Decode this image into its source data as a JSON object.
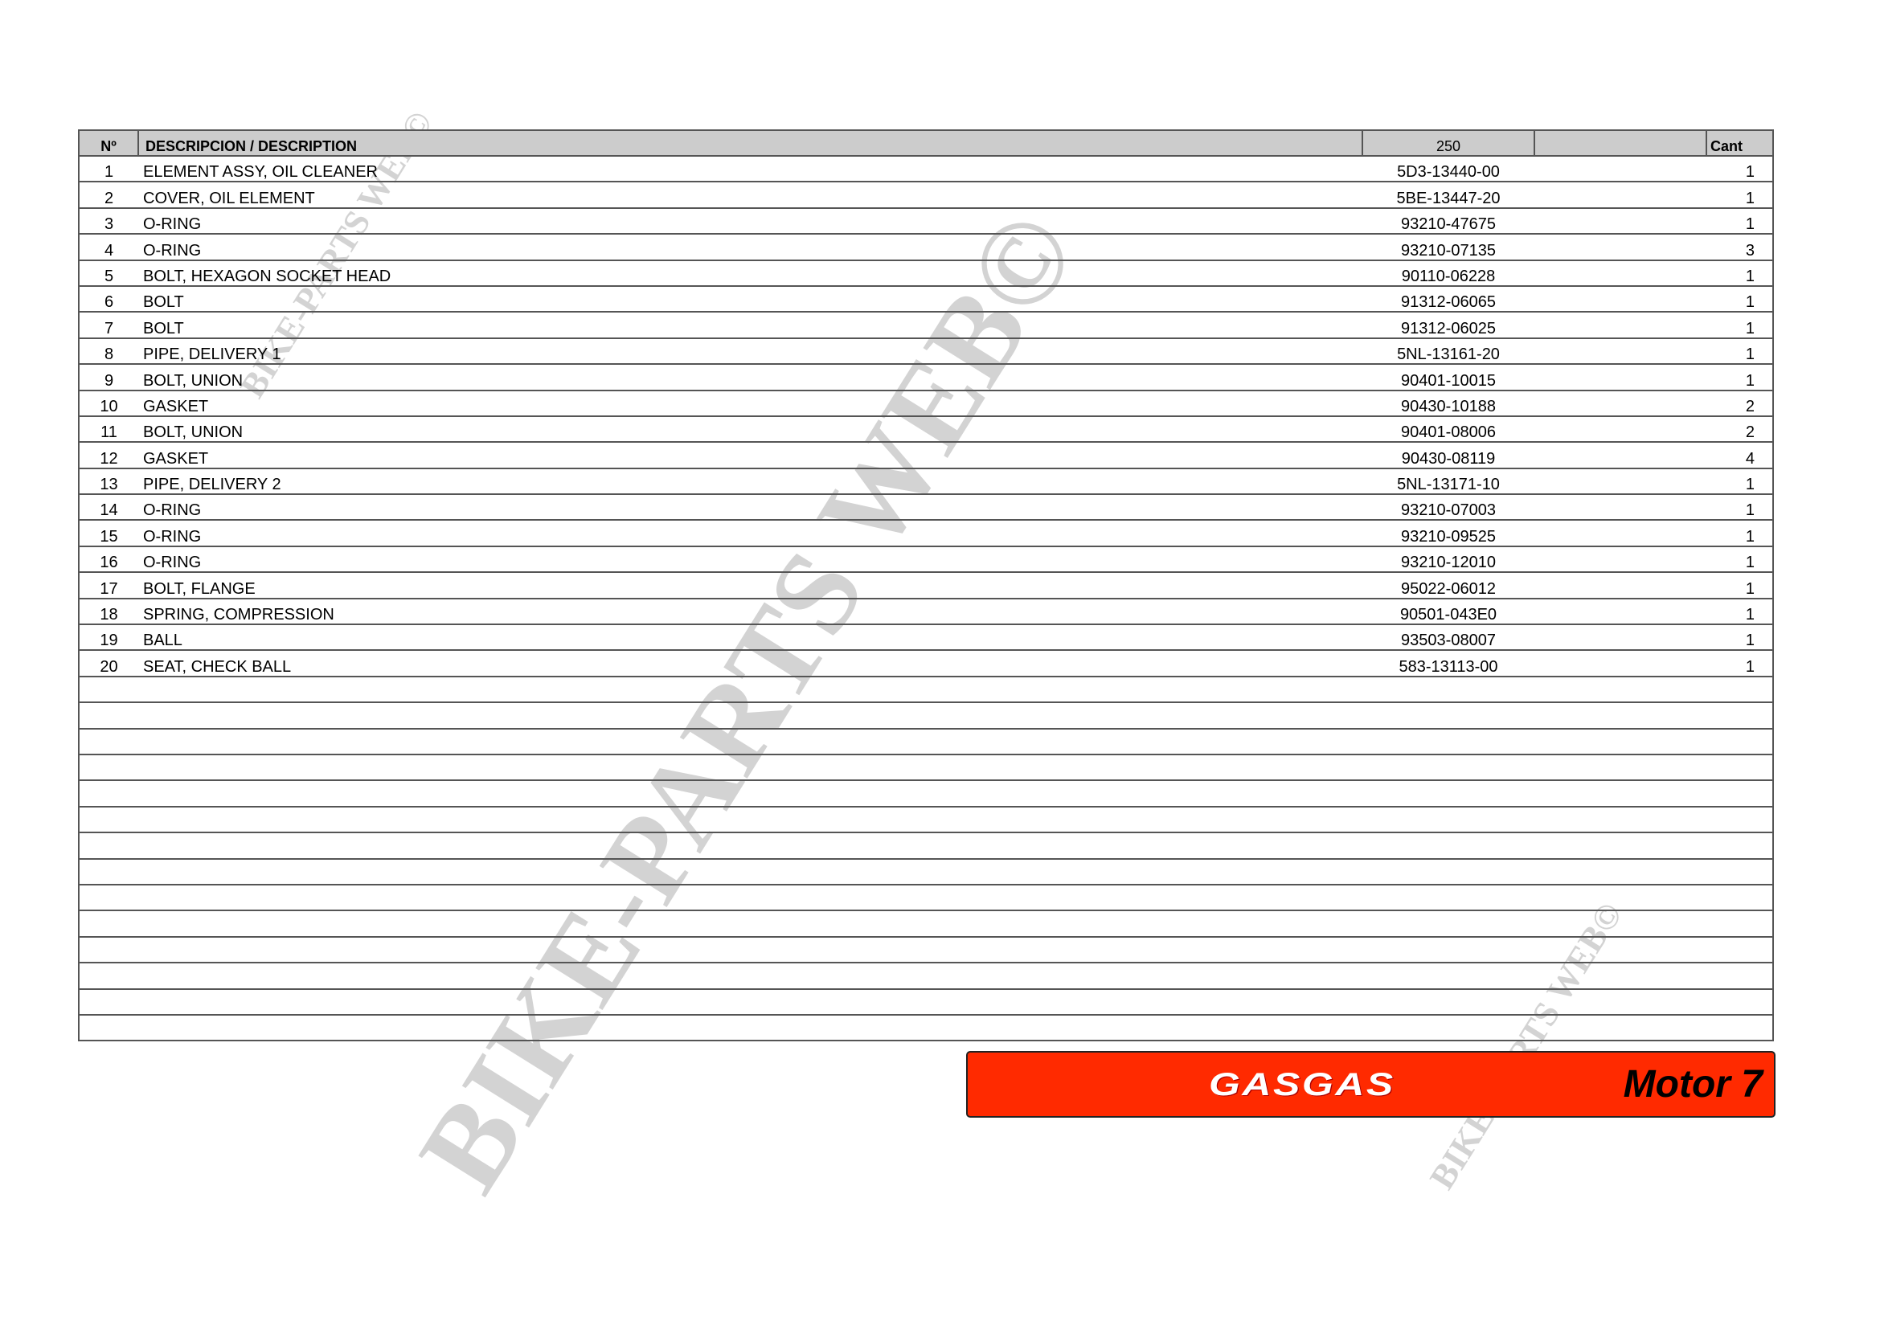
{
  "table": {
    "headers": {
      "no": "Nº",
      "description": "DESCRIPCION / DESCRIPTION",
      "model": "250",
      "blank": "",
      "qty": "Cant"
    },
    "rows": [
      {
        "no": "1",
        "description": "ELEMENT ASSY, OIL CLEANER",
        "ref": "5D3-13440-00",
        "qty": "1"
      },
      {
        "no": "2",
        "description": "COVER, OIL ELEMENT",
        "ref": "5BE-13447-20",
        "qty": "1"
      },
      {
        "no": "3",
        "description": "O-RING",
        "ref": "93210-47675",
        "qty": "1"
      },
      {
        "no": "4",
        "description": "O-RING",
        "ref": "93210-07135",
        "qty": "3"
      },
      {
        "no": "5",
        "description": "BOLT, HEXAGON SOCKET HEAD",
        "ref": "90110-06228",
        "qty": "1"
      },
      {
        "no": "6",
        "description": "BOLT",
        "ref": "91312-06065",
        "qty": "1"
      },
      {
        "no": "7",
        "description": "BOLT",
        "ref": "91312-06025",
        "qty": "1"
      },
      {
        "no": "8",
        "description": "PIPE, DELIVERY 1",
        "ref": "5NL-13161-20",
        "qty": "1"
      },
      {
        "no": "9",
        "description": "BOLT, UNION",
        "ref": "90401-10015",
        "qty": "1"
      },
      {
        "no": "10",
        "description": "GASKET",
        "ref": "90430-10188",
        "qty": "2"
      },
      {
        "no": "11",
        "description": "BOLT, UNION",
        "ref": "90401-08006",
        "qty": "2"
      },
      {
        "no": "12",
        "description": "GASKET",
        "ref": "90430-08119",
        "qty": "4"
      },
      {
        "no": "13",
        "description": "PIPE, DELIVERY 2",
        "ref": "5NL-13171-10",
        "qty": "1"
      },
      {
        "no": "14",
        "description": "O-RING",
        "ref": "93210-07003",
        "qty": "1"
      },
      {
        "no": "15",
        "description": "O-RING",
        "ref": "93210-09525",
        "qty": "1"
      },
      {
        "no": "16",
        "description": "O-RING",
        "ref": "93210-12010",
        "qty": "1"
      },
      {
        "no": "17",
        "description": "BOLT, FLANGE",
        "ref": "95022-06012",
        "qty": "1"
      },
      {
        "no": "18",
        "description": "SPRING, COMPRESSION",
        "ref": "90501-043E0",
        "qty": "1"
      },
      {
        "no": "19",
        "description": "BALL",
        "ref": "93503-08007",
        "qty": "1"
      },
      {
        "no": "20",
        "description": "SEAT, CHECK BALL",
        "ref": "583-13113-00",
        "qty": "1"
      }
    ]
  },
  "footer": {
    "brand": "GASGAS",
    "section": "Motor 7",
    "color": "#ff2a00"
  },
  "watermark": "BIKE-PARTS WEB©"
}
